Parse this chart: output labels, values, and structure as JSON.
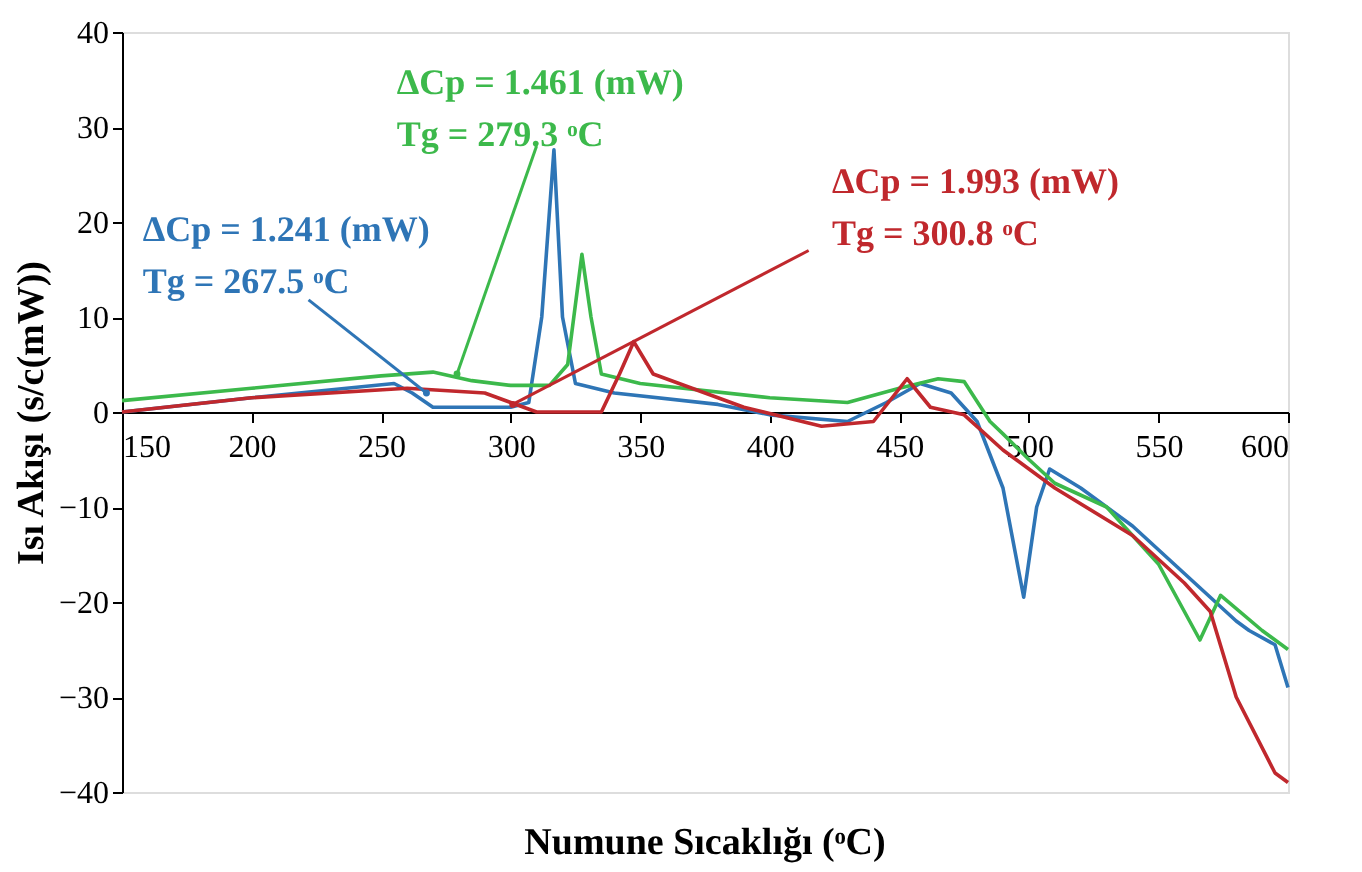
{
  "chart_data": {
    "type": "line",
    "xlabel": "Numune Sıcaklığı (ᵒC)",
    "ylabel": "Isı Akışı (s/c(mW))",
    "xlim": [
      150,
      600
    ],
    "xticks": [
      150,
      200,
      250,
      300,
      350,
      400,
      450,
      500,
      550,
      600
    ],
    "ylim": [
      -40,
      40
    ],
    "yticks": [
      -40,
      -30,
      -20,
      -10,
      0,
      10,
      20,
      30,
      40
    ],
    "grid": false,
    "legend": false,
    "series": [
      {
        "color": "#2e75b6",
        "x": [
          150,
          200,
          255,
          262,
          270,
          300,
          307,
          312,
          316.7,
          320,
          325,
          340,
          380,
          400,
          430,
          445,
          458,
          470,
          480,
          490,
          498,
          503,
          508,
          520,
          540,
          560,
          580,
          585,
          595,
          600
        ],
        "values": [
          0,
          1.5,
          3,
          2,
          0.5,
          0.5,
          1,
          10,
          27.6,
          10,
          3,
          2,
          0.8,
          -0.3,
          -1,
          1,
          3,
          2,
          -1,
          -8,
          -19.5,
          -10,
          -6,
          -8,
          -12,
          -17,
          -22,
          -23,
          -24.5,
          -29
        ]
      },
      {
        "color": "#3cb94b",
        "x": [
          150,
          200,
          250,
          270,
          285,
          300,
          315,
          322,
          327.5,
          331,
          335,
          350,
          400,
          430,
          450,
          465,
          475,
          485,
          490,
          500,
          510,
          530,
          550,
          566,
          574,
          590,
          600
        ],
        "values": [
          1.2,
          2.5,
          3.8,
          4.2,
          3.3,
          2.8,
          2.8,
          5,
          16.6,
          10,
          4,
          3,
          1.5,
          1,
          2.5,
          3.5,
          3.2,
          -1,
          -2.3,
          -5,
          -7.5,
          -10,
          -16,
          -24,
          -19.3,
          -23,
          -25
        ]
      },
      {
        "color": "#c0282d",
        "x": [
          150,
          200,
          260,
          290,
          300,
          310,
          335,
          342,
          347.5,
          355,
          370,
          390,
          420,
          440,
          453,
          462,
          475,
          490,
          510,
          540,
          560,
          570,
          580,
          595,
          600
        ],
        "values": [
          0,
          1.5,
          2.5,
          2,
          1,
          0,
          0,
          4,
          7.4,
          4,
          2.5,
          0.5,
          -1.5,
          -1,
          3.5,
          0.5,
          -0.3,
          -4,
          -8,
          -13,
          -18,
          -21,
          -30,
          -38,
          -39
        ]
      }
    ],
    "annotations": [
      {
        "text": "ΔCp = 1.241 (mW)\nTg = 267.5 ᵒC",
        "x": 267.5,
        "y": 2
      },
      {
        "text": "ΔCp = 1.461 (mW)\nTg = 279.3 ᵒC",
        "x": 279.3,
        "y": 4
      },
      {
        "text": "ΔCp = 1.993 (mW)\nTg = 300.8 ᵒC",
        "x": 300.8,
        "y": 0.8
      }
    ]
  }
}
